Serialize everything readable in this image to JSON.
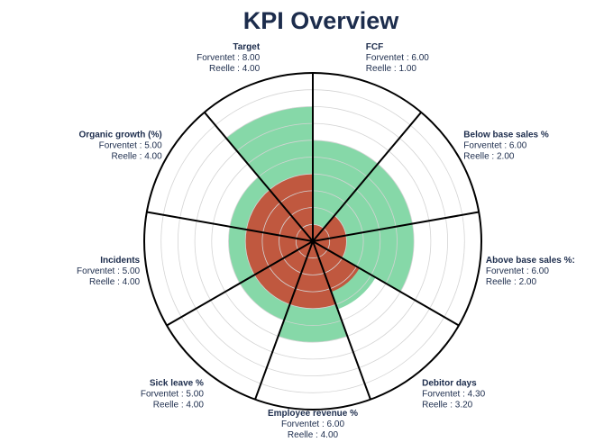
{
  "chart_data": {
    "type": "polar-area",
    "title": "KPI Overview",
    "r_max": 10,
    "grid_rings": 10,
    "value_prefix_expected": "Forventet : ",
    "value_prefix_actual": "Reelle : ",
    "colors": {
      "expected": "#7fd6a3",
      "actual": "#c0583f",
      "grid": "#d4d4d4",
      "spoke": "#000000",
      "title": "#1c2c4c",
      "label": "#1c2c4c"
    },
    "categories": [
      {
        "name": "FCF",
        "expected": 6.0,
        "actual": 1.0,
        "expected_text": "6.00",
        "actual_text": " 1.00"
      },
      {
        "name": "Below base sales %",
        "expected": 6.0,
        "actual": 2.0,
        "expected_text": "6.00",
        "actual_text": "2.00"
      },
      {
        "name": "Above base sales %:",
        "expected": 6.0,
        "actual": 2.0,
        "expected_text": "6.00",
        "actual_text": "2.00"
      },
      {
        "name": "Debitor days",
        "expected": 4.3,
        "actual": 3.2,
        "expected_text": "4.30",
        "actual_text": "3.20"
      },
      {
        "name": "Employee revenue %",
        "expected": 6.0,
        "actual": 4.0,
        "expected_text": "6.00",
        "actual_text": "4.00"
      },
      {
        "name": "Sick leave %",
        "expected": 5.0,
        "actual": 4.0,
        "expected_text": "5.00",
        "actual_text": "4.00"
      },
      {
        "name": "Incidents",
        "expected": 5.0,
        "actual": 4.0,
        "expected_text": "5.00",
        "actual_text": "4.00"
      },
      {
        "name": "Organic growth (%)",
        "expected": 5.0,
        "actual": 4.0,
        "expected_text": " 5.00",
        "actual_text": "4.00"
      },
      {
        "name": "Target",
        "expected": 8.0,
        "actual": 4.0,
        "expected_text": "8.00",
        "actual_text": "4.00"
      }
    ]
  }
}
